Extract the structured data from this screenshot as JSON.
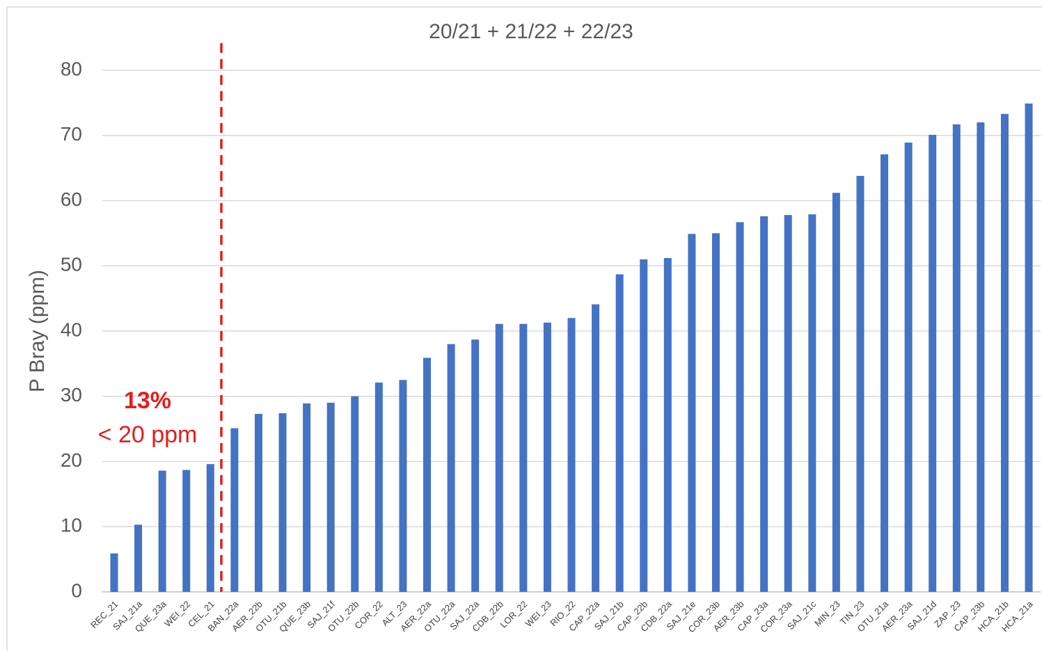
{
  "chart_data": {
    "type": "bar",
    "title": "20/21 + 21/22 + 22/23",
    "y_label": "P Bray (ppm)",
    "categories": [
      "REC_21",
      "SAJ_21a",
      "QUE_23a",
      "WEI_22",
      "CEL_21",
      "BAN_22a",
      "AER_22b",
      "OTU_21b",
      "QUE_23b",
      "SAJ_21f",
      "OTU_22b",
      "COR_22",
      "ALT_23",
      "AER_22a",
      "OTU_22a",
      "SAJ_22a",
      "CDB_22b",
      "LOR_22",
      "WEI_23",
      "RIO_22",
      "CAP_22a",
      "SAJ_21b",
      "CAP_22b",
      "CDB_22a",
      "SAJ_21e",
      "COR_23b",
      "AER_23b",
      "CAP_23a",
      "COR_23a",
      "SAJ_21c",
      "MIN_23",
      "TIN_23",
      "OTU_21a",
      "AER_23a",
      "SAJ_21d",
      "ZAP_23",
      "CAP_23b",
      "HCA_21b",
      "HCA_21a"
    ],
    "values": [
      5.9,
      10.3,
      18.6,
      18.7,
      19.6,
      25.1,
      27.3,
      27.4,
      28.9,
      29.0,
      30.0,
      32.1,
      32.5,
      35.9,
      38.0,
      38.7,
      41.1,
      41.1,
      41.3,
      42.0,
      44.1,
      48.7,
      51.0,
      51.2,
      54.9,
      55.0,
      56.7,
      57.6,
      57.8,
      57.9,
      61.2,
      63.8,
      67.1,
      68.9,
      70.1,
      71.7,
      72.0,
      73.3,
      74.9
    ],
    "color": "#4472c4",
    "ylim": [
      0,
      80
    ],
    "yticks": [
      0,
      10,
      20,
      30,
      40,
      50,
      60,
      70,
      80
    ],
    "grid": true,
    "annotations": [
      "13%",
      "< 20 ppm"
    ]
  }
}
